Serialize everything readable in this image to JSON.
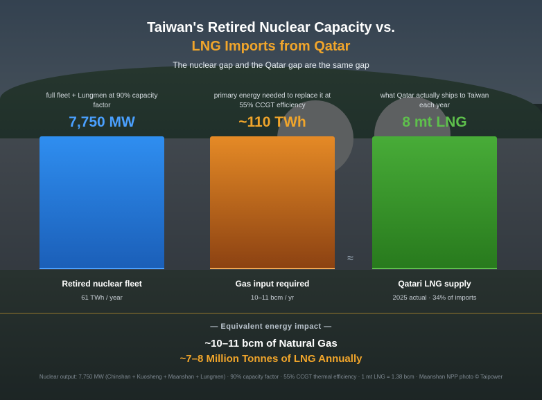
{
  "title_line1": "Taiwan's Retired Nuclear Capacity vs.",
  "title_line2": "LNG Imports from Qatar",
  "subtitle": "The nuclear gap and the Qatar gap are the same gap",
  "colors": {
    "nuclear_blue": "#2f8ef0",
    "gas_orange": "#e58a26",
    "lng_green": "#48ac38",
    "accent_gold": "#f0a52b"
  },
  "chart_data": {
    "type": "bar",
    "categories": [
      "Retired nuclear fleet",
      "Gas input required",
      "Qatari LNG supply"
    ],
    "values": [
      7750,
      110,
      8
    ],
    "units": [
      "MW",
      "TWh",
      "mt LNG"
    ],
    "value_labels": [
      "7,750 MW",
      "~110 TWh",
      "8 mt LNG"
    ],
    "descriptions": [
      "full fleet + Lungmen at 90% capacity factor",
      "primary energy needed to replace it at 55% CCGT efficiency",
      "what Qatar actually ships to Taiwan each year"
    ],
    "sublabels": [
      "61 TWh / year",
      "10–11 bcm / yr",
      "2025 actual · 34% of imports"
    ],
    "separator_symbol": "≈"
  },
  "equivalent": {
    "heading": "— Equivalent energy impact —",
    "line1": "~10–11 bcm of Natural Gas",
    "line2": "~7–8 Million Tonnes of LNG Annually"
  },
  "footnote": "Nuclear output: 7,750 MW (Chinshan + Kuosheng + Maanshan + Lungmen) · 90% capacity factor · 55% CCGT thermal efficiency · 1 mt LNG = 1.38 bcm · Maanshan NPP photo © Taipower"
}
